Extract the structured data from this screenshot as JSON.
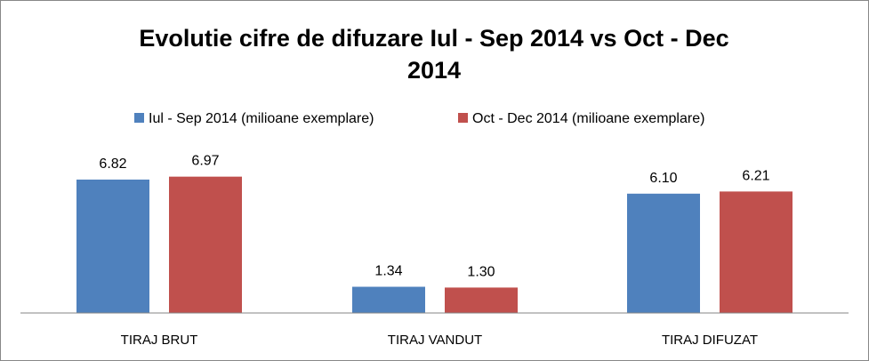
{
  "chart_data": {
    "type": "bar",
    "title_lines": [
      "Evolutie cifre de difuzare Iul - Sep 2014 vs Oct - Dec",
      "2014"
    ],
    "categories": [
      "TIRAJ BRUT",
      "TIRAJ VANDUT",
      "TIRAJ DIFUZAT"
    ],
    "series": [
      {
        "name": "Iul - Sep 2014 (milioane exemplare)",
        "color": "#4F81BD",
        "values": [
          6.82,
          1.34,
          6.1
        ],
        "labels": [
          "6.82",
          "1.34",
          "6.10"
        ]
      },
      {
        "name": "Oct - Dec 2014 (milioane exemplare)",
        "color": "#C0504D",
        "values": [
          6.97,
          1.3,
          6.21
        ],
        "labels": [
          "6.97",
          "1.30",
          "6.21"
        ]
      }
    ],
    "ylim": [
      0,
      8
    ],
    "legend_position": "top",
    "grid": false,
    "xlabel": "",
    "ylabel": ""
  }
}
